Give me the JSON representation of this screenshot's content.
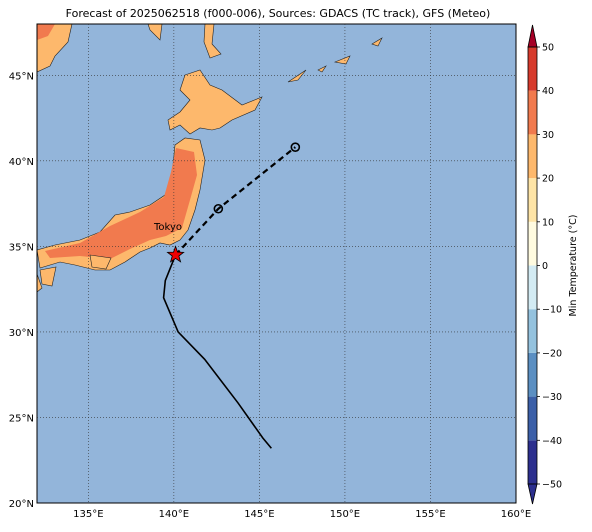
{
  "title": "Forecast of 2025062518 (f000-006), Sources: GDACS (TC track), GFS (Meteo)",
  "axes": {
    "xlim": [
      132,
      160
    ],
    "ylim": [
      20,
      48
    ],
    "xticks": [
      {
        "value": 135,
        "label": "135°E"
      },
      {
        "value": 140,
        "label": "140°E"
      },
      {
        "value": 145,
        "label": "145°E"
      },
      {
        "value": 150,
        "label": "150°E"
      },
      {
        "value": 155,
        "label": "155°E"
      },
      {
        "value": 160,
        "label": "160°E"
      }
    ],
    "yticks": [
      {
        "value": 20,
        "label": "20°N"
      },
      {
        "value": 25,
        "label": "25°N"
      },
      {
        "value": 30,
        "label": "30°N"
      },
      {
        "value": 35,
        "label": "35°N"
      },
      {
        "value": 40,
        "label": "40°N"
      },
      {
        "value": 45,
        "label": "45°N"
      }
    ],
    "grid": true
  },
  "track": {
    "past": {
      "color": "#000000",
      "lon": [
        145.7,
        145.2,
        143.75,
        141.8,
        140.25,
        139.4,
        139.5,
        140.1
      ],
      "lat": [
        23.2,
        23.8,
        25.85,
        28.4,
        30.0,
        32.0,
        33.0,
        34.5
      ]
    },
    "forecast": {
      "color": "#000000",
      "lon": [
        140.1,
        142.6,
        147.1
      ],
      "lat": [
        34.5,
        37.2,
        40.8
      ]
    }
  },
  "city": {
    "name": "Tokyo"
  },
  "colorbar": {
    "label": "Min Temperature (°C)",
    "ticks": [
      {
        "value": -50,
        "label": "−50"
      },
      {
        "value": -40,
        "label": "−40"
      },
      {
        "value": -30,
        "label": "−30"
      },
      {
        "value": -20,
        "label": "−20"
      },
      {
        "value": -10,
        "label": "−10"
      },
      0,
      10,
      20,
      30,
      40,
      50
    ],
    "colors": [
      "#2c2f8e",
      "#3b5fa8",
      "#5b8fc2",
      "#94c2de",
      "#d3ebf3",
      "#fffbe0",
      "#fee4a6",
      "#fdb86c",
      "#f17a4e",
      "#d63a2c",
      "#a50026"
    ]
  }
}
